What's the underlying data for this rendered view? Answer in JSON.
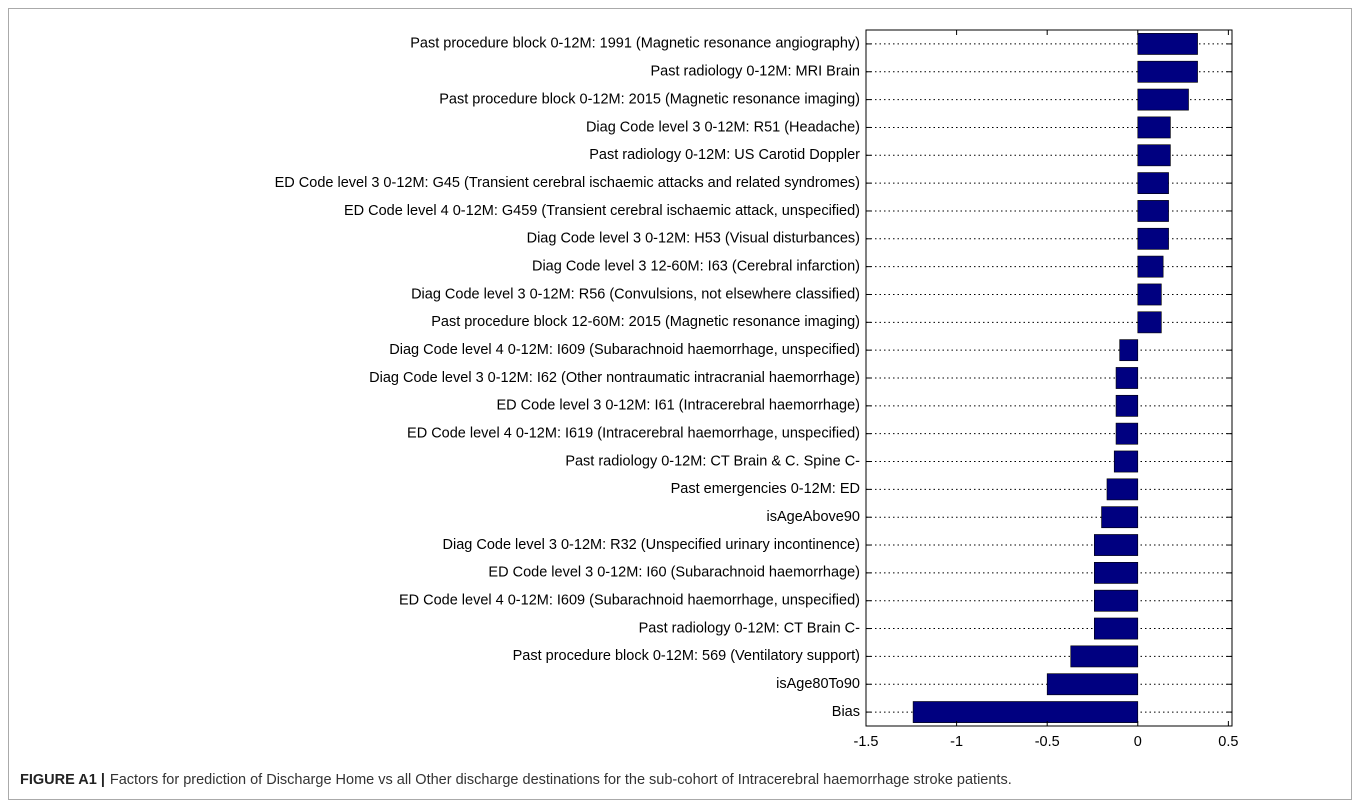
{
  "chart_data": {
    "type": "barh",
    "categories": [
      "Past procedure block 0-12M: 1991 (Magnetic resonance angiography)",
      "Past radiology 0-12M: MRI Brain",
      "Past procedure block 0-12M: 2015 (Magnetic resonance imaging)",
      "Diag Code level 3 0-12M: R51 (Headache)",
      "Past radiology 0-12M: US Carotid Doppler",
      "ED Code level 3 0-12M: G45 (Transient cerebral ischaemic attacks and related syndromes)",
      "ED Code level 4 0-12M: G459 (Transient cerebral ischaemic attack, unspecified)",
      "Diag Code level 3 0-12M: H53 (Visual disturbances)",
      "Diag Code level 3 12-60M: I63 (Cerebral infarction)",
      "Diag Code level 3 0-12M: R56 (Convulsions, not elsewhere classified)",
      "Past procedure block 12-60M: 2015 (Magnetic resonance imaging)",
      "Diag Code level 4 0-12M: I609 (Subarachnoid haemorrhage, unspecified)",
      "Diag Code level 3 0-12M: I62 (Other nontraumatic intracranial haemorrhage)",
      "ED Code level 3 0-12M: I61 (Intracerebral haemorrhage)",
      "ED Code level 4 0-12M: I619 (Intracerebral haemorrhage, unspecified)",
      "Past radiology 0-12M: CT Brain & C. Spine C-",
      "Past emergencies 0-12M: ED",
      "isAgeAbove90",
      "Diag Code level 3 0-12M: R32 (Unspecified urinary incontinence)",
      "ED Code level 3 0-12M: I60 (Subarachnoid haemorrhage)",
      "ED Code level 4 0-12M: I609 (Subarachnoid haemorrhage, unspecified)",
      "Past radiology 0-12M: CT Brain C-",
      "Past procedure block 0-12M: 569 (Ventilatory support)",
      "isAge80To90",
      "Bias"
    ],
    "values": [
      0.33,
      0.33,
      0.28,
      0.18,
      0.18,
      0.17,
      0.17,
      0.17,
      0.14,
      0.13,
      0.13,
      -0.1,
      -0.12,
      -0.12,
      -0.12,
      -0.13,
      -0.17,
      -0.2,
      -0.24,
      -0.24,
      -0.24,
      -0.24,
      -0.37,
      -0.5,
      -1.24
    ],
    "color": "#000080",
    "xlim": [
      -1.5,
      0.52
    ],
    "xticks": [
      -1.5,
      -1,
      -0.5,
      0,
      0.5
    ],
    "grid": true,
    "caption_label": "FIGURE A1 |",
    "caption": "Factors for prediction of Discharge Home vs all Other discharge destinations for the sub-cohort of Intracerebral haemorrhage stroke patients."
  }
}
